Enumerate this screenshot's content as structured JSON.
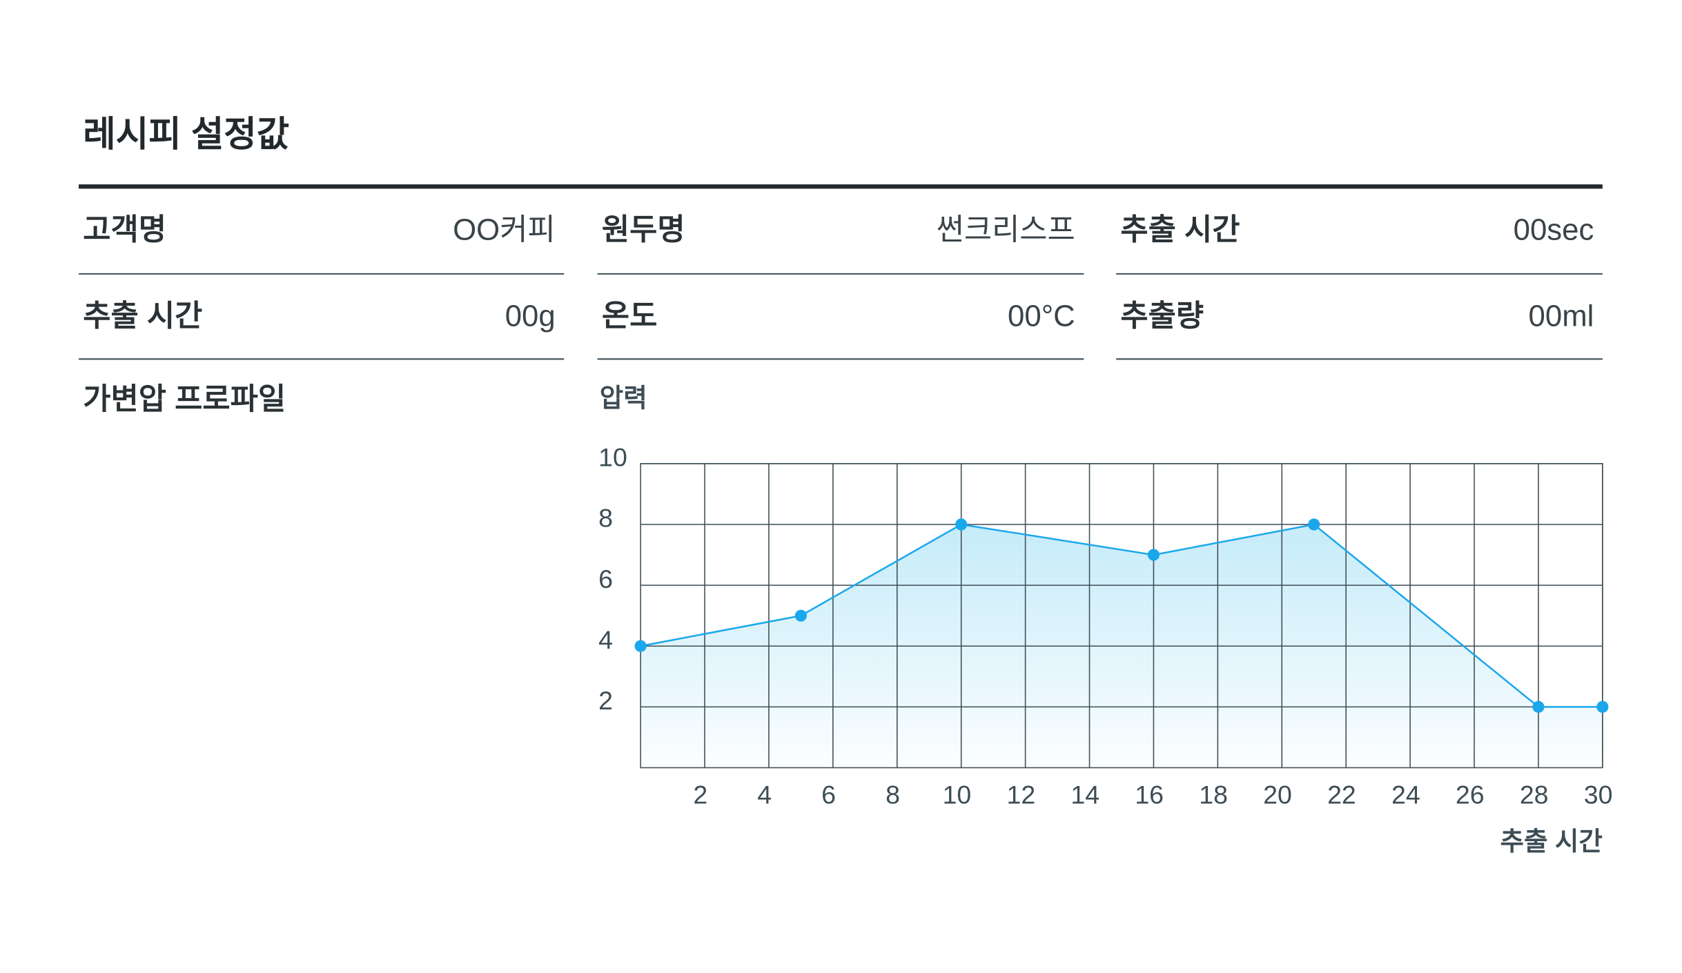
{
  "title": "레시피 설정값",
  "info": {
    "rows": [
      [
        {
          "label": "고객명",
          "value": "OO커피"
        },
        {
          "label": "원두명",
          "value": "썬크리스프"
        },
        {
          "label": "추출 시간",
          "value": "00sec"
        }
      ],
      [
        {
          "label": "추출 시간",
          "value": "00g"
        },
        {
          "label": "온도",
          "value": "00°C"
        },
        {
          "label": "추출량",
          "value": "00ml"
        }
      ]
    ]
  },
  "profile_label": "가변압 프로파일",
  "chart_data": {
    "type": "line",
    "y_label": "압력",
    "x_label": "추출 시간",
    "x": [
      0,
      5,
      10,
      16,
      21,
      28,
      30
    ],
    "values": [
      4,
      5,
      8,
      7,
      8,
      2,
      2
    ],
    "color": "#1aa7ec",
    "area": true,
    "xlim": [
      0,
      30
    ],
    "ylim": [
      0,
      10
    ],
    "xticks": [
      2,
      4,
      6,
      8,
      10,
      12,
      14,
      16,
      18,
      20,
      22,
      24,
      26,
      28,
      30
    ],
    "yticks": [
      2,
      4,
      6,
      8,
      10
    ],
    "grid": true
  }
}
